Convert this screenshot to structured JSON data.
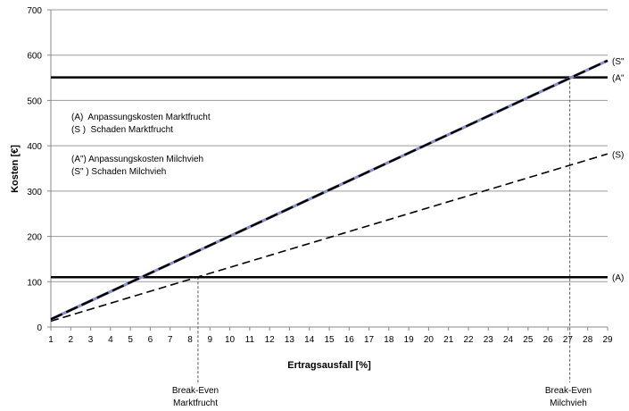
{
  "chart_data": {
    "type": "line",
    "title": "",
    "xlabel": "Ertragsausfall [%]",
    "ylabel": "Kosten [€]",
    "x": [
      1,
      2,
      3,
      4,
      5,
      6,
      7,
      8,
      9,
      10,
      11,
      12,
      13,
      14,
      15,
      16,
      17,
      18,
      19,
      20,
      21,
      22,
      23,
      24,
      25,
      26,
      27,
      28,
      29
    ],
    "xlim": [
      1,
      29
    ],
    "ylim": [
      0,
      700
    ],
    "yticks": [
      0,
      100,
      200,
      300,
      400,
      500,
      600,
      700
    ],
    "grid": "horizontal",
    "series": [
      {
        "name": "(A) Anpassungskosten Marktfrucht",
        "end_label": "(A)",
        "style": "solid",
        "color": "#000000",
        "x": [
          1,
          29
        ],
        "values": [
          110,
          110
        ]
      },
      {
        "name": "(S) Schaden Marktfrucht",
        "end_label": "(S)",
        "style": "dashed",
        "color": "#000000",
        "x": [
          1,
          29
        ],
        "values": [
          13,
          382
        ]
      },
      {
        "name": "(A\") Anpassungskosten Milchvieh",
        "end_label": "(A\"",
        "style": "solid",
        "color": "#000000",
        "x": [
          1,
          29
        ],
        "values": [
          551,
          551
        ]
      },
      {
        "name": "(S\") Schaden Milchvieh",
        "end_label": "(S\"",
        "style": "dashed-dotted",
        "color": "#000000",
        "dot_color": "#8a8fd0",
        "x": [
          1,
          29
        ],
        "values": [
          17,
          588
        ]
      }
    ],
    "legend_notes": [
      "(A)  Anpassungskosten Marktfrucht",
      "(S )  Schaden Marktfrucht",
      "(A\") Anpassungskosten Milchvieh",
      "(S\" ) Schaden Milchvieh"
    ],
    "annotations": [
      {
        "x": 8.4,
        "y": 110,
        "lines": [
          "Break-Even",
          "Marktfrucht"
        ]
      },
      {
        "x": 27.1,
        "y": 551,
        "lines": [
          "Break-Even",
          "Milchvieh"
        ]
      }
    ]
  }
}
